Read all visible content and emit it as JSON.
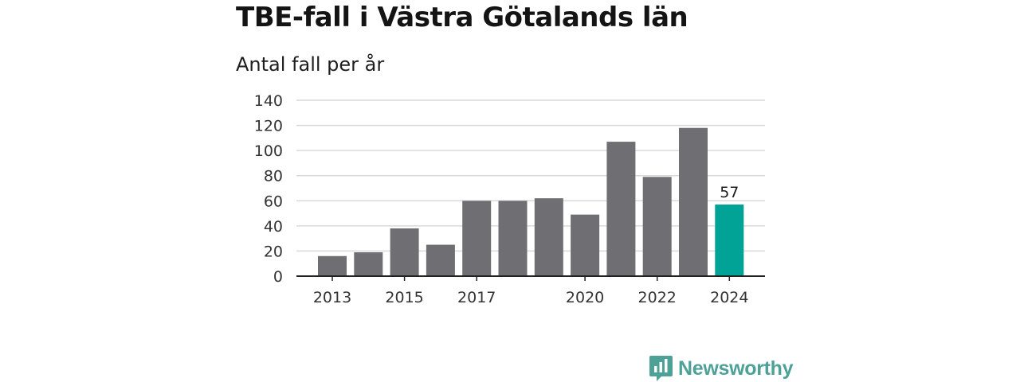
{
  "chart_data": {
    "type": "bar",
    "title": "TBE-fall i Västra Götalands län",
    "subtitle": "Antal fall per år",
    "categories": [
      "2013",
      "2014",
      "2015",
      "2016",
      "2017",
      "2018",
      "2019",
      "2020",
      "2021",
      "2022",
      "2023",
      "2024"
    ],
    "x_tick_labels": [
      "2013",
      "",
      "2015",
      "",
      "2017",
      "",
      "",
      "2020",
      "",
      "2022",
      "",
      "2024"
    ],
    "values": [
      16,
      19,
      38,
      25,
      60,
      60,
      62,
      49,
      107,
      79,
      118,
      57
    ],
    "highlight_index": 11,
    "highlight_label": "57",
    "ylim": [
      0,
      140
    ],
    "y_ticks": [
      0,
      20,
      40,
      60,
      80,
      100,
      120,
      140
    ],
    "grid": true,
    "colors": {
      "bar": "#6f6e73",
      "highlight": "#00a396",
      "grid": "#d9d9d9",
      "axis": "#222222"
    }
  },
  "brand": {
    "name": "Newsworthy",
    "logo_icon": "newsworthy-chart-logo-icon",
    "color": "#4da197"
  }
}
